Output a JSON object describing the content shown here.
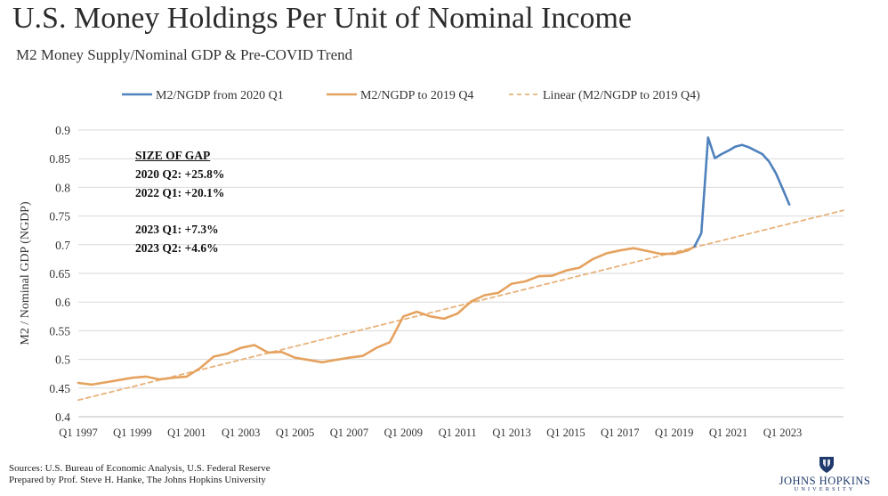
{
  "header": {
    "title": "U.S. Money Holdings Per Unit of Nominal Income",
    "subtitle": "M2 Money Supply/Nominal GDP & Pre-COVID Trend"
  },
  "annotation": {
    "heading": "SIZE OF GAP",
    "lines_a": [
      "2020 Q2: +25.8%",
      "2022 Q1: +20.1%"
    ],
    "lines_b": [
      "2023 Q1: +7.3%",
      "2023 Q2: +4.6%"
    ]
  },
  "footer": {
    "source_line": "Sources: U.S. Bureau of Economic Analysis, U.S. Federal Reserve",
    "prepared_line": "Prepared by Prof. Steve H. Hanke, The Johns Hopkins University",
    "logo_name": "JOHNS HOPKINS",
    "logo_sub": "UNIVERSITY"
  },
  "chart_data": {
    "type": "line",
    "title": "U.S. Money Holdings Per Unit of Nominal Income",
    "subtitle": "M2 Money Supply/Nominal GDP & Pre-COVID Trend",
    "xlabel": "",
    "ylabel": "M2 / Nominal GDP (NGDP)",
    "ylim": [
      0.4,
      0.9
    ],
    "yticks": [
      0.4,
      0.45,
      0.5,
      0.55,
      0.6,
      0.65,
      0.7,
      0.75,
      0.8,
      0.85,
      0.9
    ],
    "ytick_labels": [
      "0.4",
      "0.45",
      "0.5",
      "0.55",
      "0.6",
      "0.65",
      "0.7",
      "0.75",
      "0.8",
      "0.85",
      "0.9"
    ],
    "x_range": [
      1997.0,
      2025.25
    ],
    "xticks": [
      1997,
      1999,
      2001,
      2003,
      2005,
      2007,
      2009,
      2011,
      2013,
      2015,
      2017,
      2019,
      2021,
      2023
    ],
    "xtick_labels": [
      "Q1 1997",
      "Q1 1999",
      "Q1 2001",
      "Q1 2003",
      "Q1 2005",
      "Q1 2007",
      "Q1 2009",
      "Q1 2011",
      "Q1 2013",
      "Q1 2015",
      "Q1 2017",
      "Q1 2019",
      "Q1 2021",
      "Q1 2023"
    ],
    "grid": true,
    "legend_position": "top",
    "series": [
      {
        "name": "M2/NGDP from 2020 Q1",
        "color": "#4f81bd",
        "style": "solid",
        "x": [
          2019.75,
          2020.0,
          2020.25,
          2020.5,
          2020.75,
          2021.0,
          2021.25,
          2021.5,
          2021.75,
          2022.0,
          2022.25,
          2022.5,
          2022.75,
          2023.0,
          2023.25
        ],
        "values": [
          0.697,
          0.72,
          0.887,
          0.851,
          0.858,
          0.864,
          0.871,
          0.874,
          0.87,
          0.864,
          0.858,
          0.845,
          0.825,
          0.798,
          0.77
        ]
      },
      {
        "name": "M2/NGDP to 2019 Q4",
        "color": "#e5a25f",
        "style": "solid",
        "x": [
          1997.0,
          1997.5,
          1998.0,
          1998.5,
          1999.0,
          1999.5,
          2000.0,
          2000.5,
          2001.0,
          2001.5,
          2002.0,
          2002.5,
          2003.0,
          2003.5,
          2004.0,
          2004.5,
          2005.0,
          2005.5,
          2006.0,
          2006.5,
          2007.0,
          2007.5,
          2008.0,
          2008.5,
          2009.0,
          2009.5,
          2010.0,
          2010.5,
          2011.0,
          2011.5,
          2012.0,
          2012.5,
          2013.0,
          2013.5,
          2014.0,
          2014.5,
          2015.0,
          2015.5,
          2016.0,
          2016.5,
          2017.0,
          2017.5,
          2018.0,
          2018.5,
          2019.0,
          2019.5,
          2019.75
        ],
        "values": [
          0.459,
          0.456,
          0.46,
          0.464,
          0.468,
          0.47,
          0.465,
          0.468,
          0.47,
          0.485,
          0.505,
          0.51,
          0.52,
          0.525,
          0.512,
          0.513,
          0.503,
          0.499,
          0.495,
          0.499,
          0.503,
          0.506,
          0.52,
          0.53,
          0.575,
          0.583,
          0.575,
          0.571,
          0.58,
          0.601,
          0.612,
          0.616,
          0.632,
          0.636,
          0.645,
          0.646,
          0.655,
          0.66,
          0.675,
          0.685,
          0.69,
          0.694,
          0.689,
          0.684,
          0.684,
          0.69,
          0.697
        ]
      },
      {
        "name": "Linear (M2/NGDP to 2019 Q4)",
        "color": "#e8b27a",
        "style": "dashed",
        "x": [
          1997.0,
          2025.25
        ],
        "values": [
          0.429,
          0.76
        ]
      }
    ]
  }
}
